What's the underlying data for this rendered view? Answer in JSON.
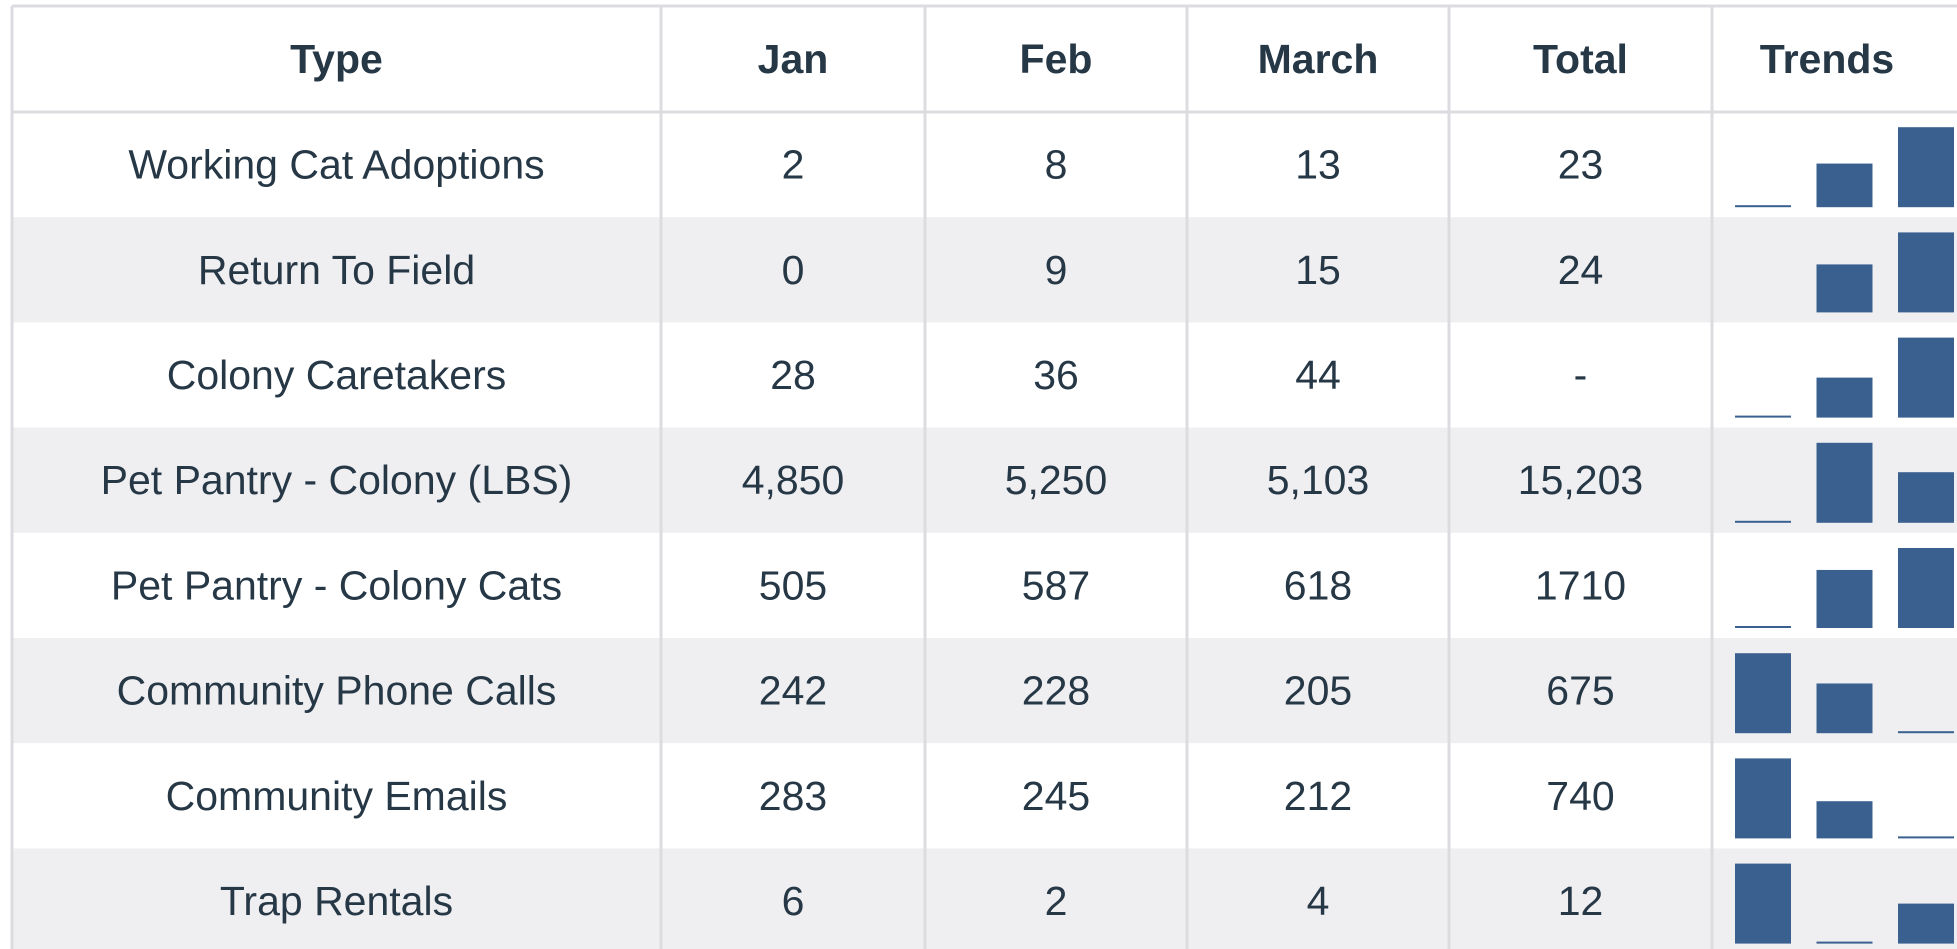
{
  "table": {
    "header": [
      "Type",
      "Jan",
      "Feb",
      "March",
      "Total",
      "Trends"
    ],
    "rows": [
      {
        "type": "Working Cat Adoptions",
        "values": [
          2,
          8,
          13
        ],
        "total": 23
      },
      {
        "type": "Return To Field",
        "values": [
          0,
          9,
          15
        ],
        "total": 24
      },
      {
        "type": "Colony Caretakers",
        "values": [
          28,
          36,
          44
        ],
        "total": "-"
      },
      {
        "type": "Pet Pantry - Colony (LBS)",
        "values": [
          {
            "value": 4850,
            "label": "4,850"
          },
          {
            "value": 5250,
            "label": "5,250"
          },
          {
            "value": 5103,
            "label": "5,103"
          }
        ],
        "total": {
          "value": 15203,
          "label": "15,203"
        }
      },
      {
        "type": "Pet Pantry - Colony Cats",
        "values": [
          505,
          587,
          618
        ],
        "total": 1710
      },
      {
        "type": "Community Phone Calls",
        "values": [
          242,
          228,
          205
        ],
        "total": 675
      },
      {
        "type": "Community Emails",
        "values": [
          283,
          245,
          212
        ],
        "total": 740
      },
      {
        "type": "Trap Rentals",
        "values": [
          6,
          2,
          4
        ],
        "total": 12
      }
    ],
    "trend_color": "#3a6090"
  }
}
